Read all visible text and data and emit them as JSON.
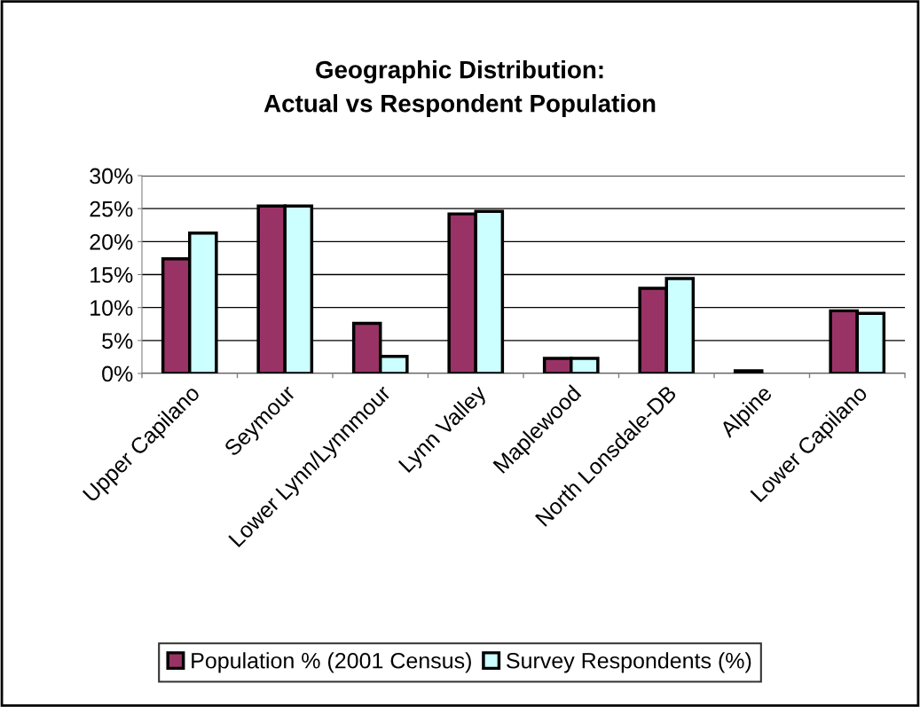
{
  "chart_data": {
    "type": "bar",
    "title": "Geographic Distribution:\nActual vs Respondent Population",
    "categories": [
      "Upper Capilano",
      "Seymour",
      "Lower Lynn/Lynnmour",
      "Lynn Valley",
      "Maplewood",
      "North Lonsdale-DB",
      "Alpine",
      "Lower Capilano"
    ],
    "series": [
      {
        "name": "Population % (2001 Census)",
        "color": "#993366",
        "values": [
          17.4,
          25.4,
          7.6,
          24.2,
          2.3,
          12.9,
          0.4,
          9.5
        ]
      },
      {
        "name": "Survey Respondents (%)",
        "color": "#ccffff",
        "values": [
          21.3,
          25.4,
          2.6,
          24.6,
          2.3,
          14.4,
          null,
          9.1
        ]
      }
    ],
    "ylim": [
      0,
      30
    ],
    "yticks": [
      {
        "value": 0,
        "label": "0%"
      },
      {
        "value": 5,
        "label": "5%"
      },
      {
        "value": 10,
        "label": "10%"
      },
      {
        "value": 15,
        "label": "15%"
      },
      {
        "value": 20,
        "label": "20%"
      },
      {
        "value": 25,
        "label": "25%"
      },
      {
        "value": 30,
        "label": "30%"
      }
    ],
    "grid": "y",
    "legend": "bottom"
  }
}
